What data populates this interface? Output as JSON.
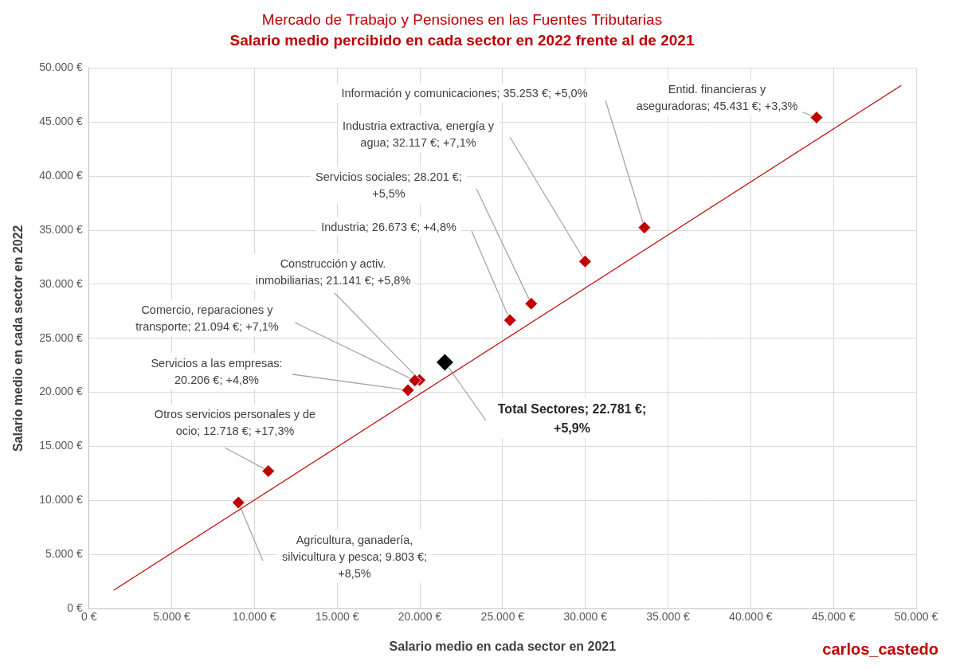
{
  "chart_data": {
    "type": "scatter",
    "title": "Mercado de Trabajo y Pensiones en las Fuentes Tributarias",
    "subtitle": "Salario medio percibido en cada sector en 2022 frente al de 2021",
    "x_label": "Salario medio en cada sector en 2021",
    "y_label": "Salario medio en cada sector en 2022",
    "credit": "carlos_castedo",
    "xlim": [
      0,
      50000
    ],
    "ylim": [
      0,
      50000
    ],
    "xticks": [
      {
        "value": 0,
        "label": "0 €"
      },
      {
        "value": 5000,
        "label": "5.000 €"
      },
      {
        "value": 10000,
        "label": "10.000 €"
      },
      {
        "value": 15000,
        "label": "15.000 €"
      },
      {
        "value": 20000,
        "label": "20.000 €"
      },
      {
        "value": 25000,
        "label": "25.000 €"
      },
      {
        "value": 30000,
        "label": "30.000 €"
      },
      {
        "value": 35000,
        "label": "35.000 €"
      },
      {
        "value": 40000,
        "label": "40.000 €"
      },
      {
        "value": 45000,
        "label": "45.000 €"
      },
      {
        "value": 50000,
        "label": "50.000 €"
      }
    ],
    "yticks": [
      {
        "value": 0,
        "label": "0 €"
      },
      {
        "value": 5000,
        "label": "5.000 €"
      },
      {
        "value": 10000,
        "label": "10.000 €"
      },
      {
        "value": 15000,
        "label": "15.000 €"
      },
      {
        "value": 20000,
        "label": "20.000 €"
      },
      {
        "value": 25000,
        "label": "25.000 €"
      },
      {
        "value": 30000,
        "label": "30.000 €"
      },
      {
        "value": 35000,
        "label": "35.000 €"
      },
      {
        "value": 40000,
        "label": "40.000 €"
      },
      {
        "value": 45000,
        "label": "45.000 €"
      },
      {
        "value": 50000,
        "label": "50.000 €"
      }
    ],
    "grid": true,
    "series": [
      {
        "type": "scatter",
        "marker": "diamond",
        "x": [
          33574,
          43980,
          29988,
          26731,
          25451,
          19982,
          19696,
          19281,
          10842,
          9035,
          21512
        ],
        "y": [
          35253,
          45431,
          32117,
          28201,
          26673,
          21141,
          21094,
          20206,
          12718,
          9803,
          22781
        ],
        "colors": [
          "#c00000",
          "#c00000",
          "#c00000",
          "#c00000",
          "#c00000",
          "#c00000",
          "#c00000",
          "#c00000",
          "#c00000",
          "#c00000",
          "#000000"
        ],
        "labels": [
          [
            "Información y comunicaciones; 35.253 €; +5,0%"
          ],
          [
            "Entid. financieras y",
            "aseguradoras; 45.431 €; +3,3%"
          ],
          [
            "Industria extractiva, energía y",
            "agua; 32.117 €; +7,1%"
          ],
          [
            "Servicios sociales; 28.201 €;",
            "+5,5%"
          ],
          [
            "Industria; 26.673 €; +4,8%"
          ],
          [
            "Construcción y activ.",
            "inmobiliarias; 21.141 €; +5,8%"
          ],
          [
            "Comercio, reparaciones y",
            "transporte; 21.094 €; +7,1%"
          ],
          [
            "Servicios a las empresas:",
            "20.206 €; +4,8%"
          ],
          [
            "Otros servicios personales y de",
            "ocio; 12.718 €; +17,3%"
          ],
          [
            "Agricultura, ganadería,",
            "silvicultura y pesca; 9.803 €;",
            "+8,5%"
          ],
          [
            "Total Sectores; 22.781 €;",
            "+5,9%"
          ]
        ]
      },
      {
        "type": "line",
        "color": "#c00000",
        "line_style": "solid",
        "x": [
          1500,
          49100
        ],
        "y": [
          1700,
          48400
        ]
      }
    ]
  }
}
